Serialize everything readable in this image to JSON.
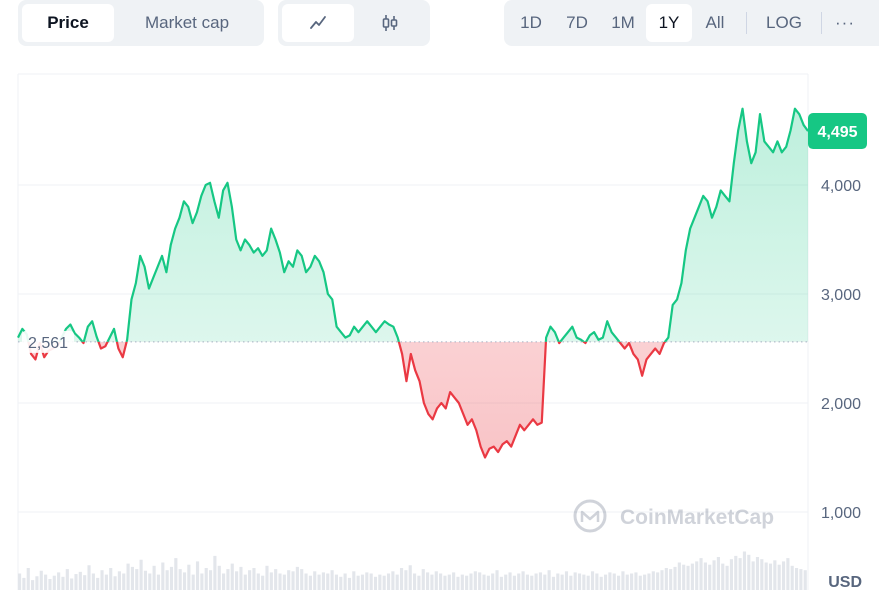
{
  "toolbar": {
    "metric_tabs": [
      {
        "label": "Price",
        "active": true
      },
      {
        "label": "Market cap",
        "active": false
      }
    ],
    "chart_modes": [
      {
        "icon": "line-chart-icon",
        "active": true
      },
      {
        "icon": "candlestick-icon",
        "active": false
      }
    ],
    "ranges": [
      {
        "label": "1D",
        "active": false
      },
      {
        "label": "7D",
        "active": false
      },
      {
        "label": "1M",
        "active": false
      },
      {
        "label": "1Y",
        "active": true
      },
      {
        "label": "All",
        "active": false
      }
    ],
    "log_label": "LOG",
    "more_label": "···"
  },
  "watermark": "CoinMarketCap",
  "currency": "USD",
  "colors": {
    "up": "#16c784",
    "down": "#ea3943",
    "grid": "#eff2f5",
    "axis_text": "#58667e",
    "active_tab_bg": "#ffffff",
    "tab_bg": "#eff2f5"
  },
  "chart_data": {
    "type": "area",
    "baseline": 2561,
    "baseline_label": "2,561",
    "current": 4495,
    "current_label": "4,495",
    "ylim": [
      0,
      4900
    ],
    "yticks": [
      1000,
      2000,
      3000,
      4000
    ],
    "ytick_labels": [
      "1,000",
      "2,000",
      "3,000",
      "4,000"
    ],
    "y_unit": "USD",
    "grid": true,
    "series": [
      {
        "values": [
          2600,
          2680,
          2630,
          2450,
          2400,
          2550,
          2420,
          2480,
          2500,
          2520,
          2600,
          2680,
          2720,
          2640,
          2600,
          2550,
          2700,
          2750,
          2610,
          2500,
          2520,
          2600,
          2680,
          2500,
          2420,
          2580,
          2950,
          3100,
          3350,
          3250,
          3050,
          3150,
          3250,
          3350,
          3200,
          3450,
          3600,
          3700,
          3850,
          3800,
          3650,
          3750,
          3900,
          4000,
          4020,
          3850,
          3700,
          3950,
          4020,
          3800,
          3500,
          3400,
          3500,
          3450,
          3380,
          3420,
          3350,
          3400,
          3600,
          3500,
          3380,
          3200,
          3300,
          3250,
          3400,
          3350,
          3200,
          3250,
          3350,
          3300,
          3200,
          3000,
          2950,
          2700,
          2650,
          2600,
          2620,
          2700,
          2650,
          2700,
          2750,
          2700,
          2650,
          2700,
          2750,
          2720,
          2700,
          2600,
          2450,
          2200,
          2450,
          2300,
          2200,
          2000,
          1900,
          1850,
          1950,
          2000,
          1950,
          2100,
          2050,
          2000,
          1900,
          1800,
          1850,
          1750,
          1600,
          1500,
          1580,
          1600,
          1550,
          1620,
          1650,
          1600,
          1700,
          1800,
          1750,
          1800,
          1850,
          1800,
          1820,
          2600,
          2700,
          2650,
          2550,
          2600,
          2650,
          2700,
          2600,
          2580,
          2550,
          2620,
          2650,
          2580,
          2600,
          2750,
          2650,
          2600,
          2550,
          2500,
          2550,
          2450,
          2400,
          2250,
          2400,
          2450,
          2500,
          2450,
          2550,
          2600,
          2900,
          2950,
          3100,
          3400,
          3600,
          3700,
          3800,
          3900,
          3850,
          3700,
          3800,
          3950,
          3900,
          3850,
          4200,
          4500,
          4700,
          4400,
          4200,
          4300,
          4650,
          4400,
          4350,
          4300,
          4400,
          4300,
          4350,
          4500,
          4700,
          4650,
          4550,
          4495
        ]
      }
    ],
    "volume": [
      30,
      22,
      40,
      18,
      25,
      35,
      28,
      20,
      26,
      32,
      24,
      38,
      21,
      29,
      33,
      27,
      45,
      30,
      22,
      36,
      28,
      40,
      25,
      34,
      30,
      48,
      42,
      38,
      55,
      35,
      30,
      44,
      28,
      50,
      36,
      42,
      58,
      38,
      32,
      46,
      28,
      52,
      30,
      40,
      36,
      62,
      44,
      30,
      38,
      48,
      34,
      42,
      28,
      36,
      40,
      30,
      26,
      44,
      32,
      38,
      30,
      28,
      36,
      34,
      42,
      38,
      30,
      26,
      34,
      28,
      32,
      30,
      36,
      28,
      24,
      30,
      22,
      34,
      26,
      28,
      32,
      30,
      24,
      28,
      26,
      30,
      34,
      28,
      40,
      36,
      45,
      30,
      26,
      38,
      32,
      28,
      34,
      30,
      26,
      28,
      32,
      24,
      28,
      26,
      30,
      34,
      32,
      28,
      26,
      30,
      36,
      24,
      28,
      32,
      26,
      30,
      34,
      28,
      26,
      30,
      32,
      28,
      36,
      24,
      30,
      28,
      34,
      26,
      32,
      30,
      28,
      26,
      34,
      30,
      24,
      28,
      32,
      30,
      26,
      34,
      28,
      30,
      32,
      26,
      28,
      30,
      34,
      32,
      36,
      40,
      38,
      42,
      50,
      46,
      44,
      48,
      52,
      58,
      50,
      46,
      54,
      60,
      48,
      44,
      56,
      62,
      58,
      70,
      64,
      52,
      60,
      56,
      50,
      48,
      54,
      46,
      52,
      58,
      44,
      40,
      38,
      36
    ]
  }
}
